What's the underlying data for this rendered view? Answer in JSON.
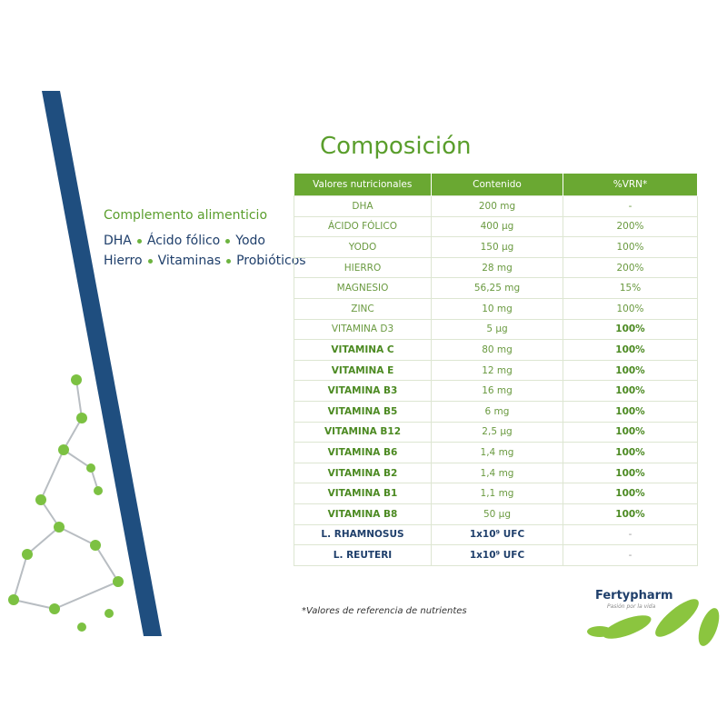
{
  "title": "Composición",
  "left_panel": {
    "subtitle": "Complemento alimenticio",
    "lines": [
      [
        "DHA",
        "Ácido fólico",
        "Yodo"
      ],
      [
        "Hierro",
        "Vitaminas",
        "Probióticos"
      ]
    ]
  },
  "table": {
    "headers": [
      "Valores nutricionales",
      "Contenido",
      "%VRN*"
    ],
    "rows": [
      [
        "DHA",
        "200 mg",
        "-"
      ],
      [
        "ÁCIDO FÓLICO",
        "400 µg",
        "200%"
      ],
      [
        "YODO",
        "150 µg",
        "100%"
      ],
      [
        "HIERRO",
        "28 mg",
        "200%"
      ],
      [
        "MAGNESIO",
        "56,25 mg",
        "15%"
      ],
      [
        "ZINC",
        "10 mg",
        "100%"
      ],
      [
        "VITAMINA D3",
        "5 µg",
        "100%"
      ],
      [
        "VITAMINA C",
        "80 mg",
        "100%"
      ],
      [
        "VITAMINA E",
        "12 mg",
        "100%"
      ],
      [
        "VITAMINA B3",
        "16 mg",
        "100%"
      ],
      [
        "VITAMINA B5",
        "6 mg",
        "100%"
      ],
      [
        "VITAMINA B12",
        "2,5 µg",
        "100%"
      ],
      [
        "VITAMINA B6",
        "1,4 mg",
        "100%"
      ],
      [
        "VITAMINA B2",
        "1,4 mg",
        "100%"
      ],
      [
        "VITAMINA B1",
        "1,1 mg",
        "100%"
      ],
      [
        "VITAMINA B8",
        "50 µg",
        "100%"
      ],
      [
        "L. RHAMNOSUS",
        "1x10⁹ UFC",
        "-"
      ],
      [
        "L. REUTERI",
        "1x10⁹ UFC",
        "-"
      ]
    ]
  },
  "footnote": "*Valores de referencia de nutrientes",
  "brand": {
    "name": "Fertypharm",
    "tagline": "Pasión por la vida"
  }
}
